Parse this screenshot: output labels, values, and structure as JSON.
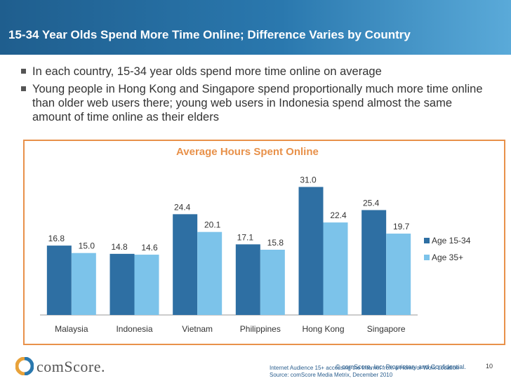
{
  "slide": {
    "title": "15-34 Year Olds Spend More Time Online; Difference Varies by Country",
    "bullets": [
      "In each country, 15-34 year olds spend more time online on average",
      "Young people in Hong Kong and Singapore spend proportionally much more time online than older web users there; young web users in Indonesia spend almost the same amount of time online as their elders"
    ],
    "footer_line1": "Internet Audience 15+ accessing the Internet from a Home or Work Location",
    "footer_line2": "Source: comScore Media Metrix, December 2010",
    "copyright": "© comScore, Inc.  Proprietary and Confidential.",
    "page_number": "10",
    "logo_text": "comScore."
  },
  "colors": {
    "banner": "#1f5e8e",
    "series_dark": "#2e6fa3",
    "series_light": "#7cc3ea",
    "chart_title": "#e8914a",
    "frame": "#e8914a"
  },
  "chart_data": {
    "type": "bar",
    "title": "Average Hours Spent Online",
    "xlabel": "",
    "ylabel": "",
    "categories": [
      "Malaysia",
      "Indonesia",
      "Vietnam",
      "Philippines",
      "Hong Kong",
      "Singapore"
    ],
    "series": [
      {
        "name": "Age 15-34",
        "values": [
          16.8,
          14.8,
          24.4,
          17.1,
          31.0,
          25.4
        ]
      },
      {
        "name": "Age 35+",
        "values": [
          15.0,
          14.6,
          20.1,
          15.8,
          22.4,
          19.7
        ]
      }
    ],
    "value_labels": [
      [
        "16.8",
        "14.8",
        "24.4",
        "17.1",
        "31.0",
        "25.4"
      ],
      [
        "15.0",
        "14.6",
        "20.1",
        "15.8",
        "22.4",
        "19.7"
      ]
    ],
    "ylim": [
      0,
      35
    ],
    "grid": false,
    "legend_position": "right"
  }
}
